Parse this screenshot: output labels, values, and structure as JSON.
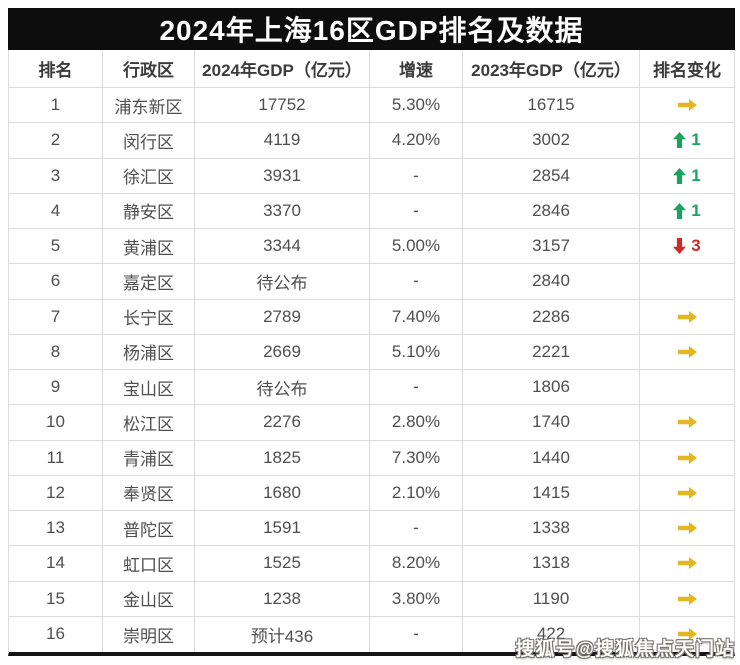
{
  "watermark": "搜狐号@搜狐焦点天门站",
  "colors": {
    "title_bg": "#0d0d0d",
    "border": "#dcdcdc",
    "up": "#1aa35d",
    "down": "#cf2b25",
    "same": "#e2b722"
  },
  "chart_data": {
    "type": "table",
    "title": "2024年上海16区GDP排名及数据",
    "columns": [
      "排名",
      "行政区",
      "2024年GDP（亿元）",
      "增速",
      "2023年GDP（亿元）",
      "排名变化"
    ],
    "rows": [
      {
        "rank": "1",
        "district": "浦东新区",
        "gdp_2024": "17752",
        "growth": "5.30%",
        "gdp_2023": "16715",
        "change_dir": "same",
        "change_value": ""
      },
      {
        "rank": "2",
        "district": "闵行区",
        "gdp_2024": "4119",
        "growth": "4.20%",
        "gdp_2023": "3002",
        "change_dir": "up",
        "change_value": "1"
      },
      {
        "rank": "3",
        "district": "徐汇区",
        "gdp_2024": "3931",
        "growth": "-",
        "gdp_2023": "2854",
        "change_dir": "up",
        "change_value": "1"
      },
      {
        "rank": "4",
        "district": "静安区",
        "gdp_2024": "3370",
        "growth": "-",
        "gdp_2023": "2846",
        "change_dir": "up",
        "change_value": "1"
      },
      {
        "rank": "5",
        "district": "黄浦区",
        "gdp_2024": "3344",
        "growth": "5.00%",
        "gdp_2023": "3157",
        "change_dir": "down",
        "change_value": "3"
      },
      {
        "rank": "6",
        "district": "嘉定区",
        "gdp_2024": "待公布",
        "growth": "-",
        "gdp_2023": "2840",
        "change_dir": "none",
        "change_value": ""
      },
      {
        "rank": "7",
        "district": "长宁区",
        "gdp_2024": "2789",
        "growth": "7.40%",
        "gdp_2023": "2286",
        "change_dir": "same",
        "change_value": ""
      },
      {
        "rank": "8",
        "district": "杨浦区",
        "gdp_2024": "2669",
        "growth": "5.10%",
        "gdp_2023": "2221",
        "change_dir": "same",
        "change_value": ""
      },
      {
        "rank": "9",
        "district": "宝山区",
        "gdp_2024": "待公布",
        "growth": "-",
        "gdp_2023": "1806",
        "change_dir": "none",
        "change_value": ""
      },
      {
        "rank": "10",
        "district": "松江区",
        "gdp_2024": "2276",
        "growth": "2.80%",
        "gdp_2023": "1740",
        "change_dir": "same",
        "change_value": ""
      },
      {
        "rank": "11",
        "district": "青浦区",
        "gdp_2024": "1825",
        "growth": "7.30%",
        "gdp_2023": "1440",
        "change_dir": "same",
        "change_value": ""
      },
      {
        "rank": "12",
        "district": "奉贤区",
        "gdp_2024": "1680",
        "growth": "2.10%",
        "gdp_2023": "1415",
        "change_dir": "same",
        "change_value": ""
      },
      {
        "rank": "13",
        "district": "普陀区",
        "gdp_2024": "1591",
        "growth": "-",
        "gdp_2023": "1338",
        "change_dir": "same",
        "change_value": ""
      },
      {
        "rank": "14",
        "district": "虹口区",
        "gdp_2024": "1525",
        "growth": "8.20%",
        "gdp_2023": "1318",
        "change_dir": "same",
        "change_value": ""
      },
      {
        "rank": "15",
        "district": "金山区",
        "gdp_2024": "1238",
        "growth": "3.80%",
        "gdp_2023": "1190",
        "change_dir": "same",
        "change_value": ""
      },
      {
        "rank": "16",
        "district": "崇明区",
        "gdp_2024": "预计436",
        "growth": "-",
        "gdp_2023": "422",
        "change_dir": "same",
        "change_value": ""
      }
    ]
  }
}
